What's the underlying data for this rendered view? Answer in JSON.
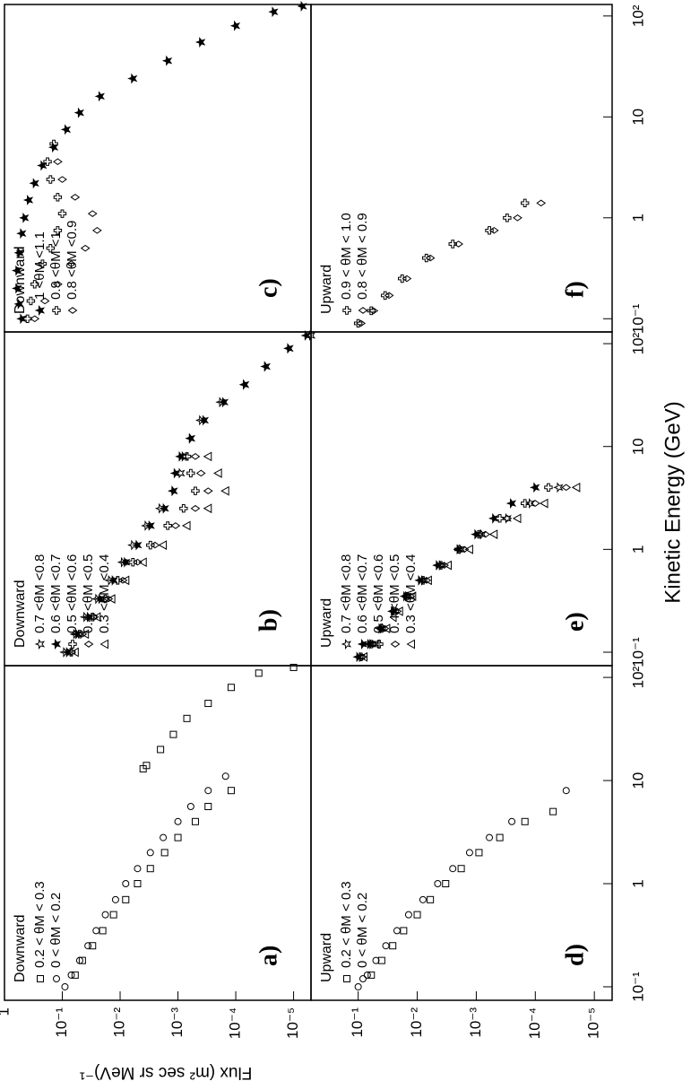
{
  "ylabel": "Flux (m² sec sr MeV)⁻¹",
  "xlabel": "Kinetic Energy (GeV)",
  "chart_data": [
    {
      "type": "scatter",
      "panel_label": "a)",
      "legend_title": "Downward",
      "legend": "upper left",
      "log_x": true,
      "log_y": true,
      "xlim": [
        0.074,
        130
      ],
      "ylim": [
        5e-06,
        1
      ],
      "yticks": [
        1,
        {
          "value": 0.1,
          "label": "10⁻¹"
        },
        {
          "value": 0.01,
          "label": "10⁻²"
        },
        {
          "value": 0.001,
          "label": "10⁻³"
        },
        {
          "value": 0.0001,
          "label": "10⁻⁴"
        },
        {
          "value": 1e-05,
          "label": "10⁻⁵"
        }
      ],
      "series": [
        {
          "name": "0.2 < θM < 0.3",
          "marker": "square",
          "color": "#000000",
          "x": [
            0.13,
            0.18,
            0.25,
            0.35,
            0.5,
            0.7,
            1,
            1.4,
            2,
            2.8,
            4,
            5.6,
            8,
            13,
            14,
            20,
            28,
            40,
            56,
            80,
            110,
            125
          ],
          "values": [
            0.06,
            0.045,
            0.03,
            0.02,
            0.013,
            0.008,
            0.005,
            0.003,
            0.0017,
            0.001,
            0.0005,
            0.0003,
            0.00012,
            0.004,
            0.0035,
            0.002,
            0.0012,
            0.0007,
            0.0003,
            0.00012,
            4e-05,
            1e-05
          ]
        },
        {
          "name": "0 < θM < 0.2",
          "marker": "circle",
          "color": "#000000",
          "x": [
            0.1,
            0.13,
            0.18,
            0.25,
            0.35,
            0.5,
            0.7,
            1,
            1.4,
            2,
            2.8,
            4,
            5.6,
            8,
            11
          ],
          "values": [
            0.09,
            0.07,
            0.05,
            0.036,
            0.026,
            0.018,
            0.012,
            0.008,
            0.005,
            0.003,
            0.0018,
            0.001,
            0.0006,
            0.0003,
            0.00015
          ]
        }
      ]
    },
    {
      "type": "scatter",
      "panel_label": "b)",
      "legend_title": "Downward",
      "legend": "upper left",
      "log_x": true,
      "log_y": true,
      "xlim": [
        0.074,
        130
      ],
      "ylim": [
        5e-06,
        1
      ],
      "series": [
        {
          "name": "0.7 <θM <0.8",
          "marker": "star-open",
          "color": "#000000",
          "x": [
            0.1,
            0.15,
            0.22,
            0.33,
            0.5,
            0.75,
            1.1,
            1.7,
            2.5,
            3.7,
            5.5,
            8,
            12,
            18,
            27,
            40,
            60,
            90,
            120
          ],
          "values": [
            0.09,
            0.06,
            0.04,
            0.025,
            0.015,
            0.009,
            0.006,
            0.0035,
            0.002,
            0.0012,
            0.0009,
            0.0008,
            0.0006,
            0.0004,
            0.00018,
            7e-05,
            3e-05,
            1.2e-05,
            5e-06
          ]
        },
        {
          "name": "0.6 <θM <0.7",
          "marker": "star",
          "color": "#000000",
          "x": [
            0.1,
            0.15,
            0.22,
            0.33,
            0.5,
            0.75,
            1.1,
            1.7,
            2.5,
            3.7,
            5.5,
            8,
            12,
            18,
            27,
            40,
            60,
            90,
            120
          ],
          "values": [
            0.08,
            0.055,
            0.035,
            0.022,
            0.013,
            0.008,
            0.005,
            0.003,
            0.0017,
            0.0012,
            0.0011,
            0.0009,
            0.0006,
            0.00035,
            0.00016,
            7e-05,
            3e-05,
            1.2e-05,
            6e-06
          ]
        },
        {
          "name": "0.5 <θM <0.6",
          "marker": "cross",
          "color": "#000000",
          "x": [
            0.1,
            0.15,
            0.22,
            0.33,
            0.5,
            0.75,
            1.1,
            1.7,
            2.5,
            3.7,
            5.5,
            8
          ],
          "values": [
            0.07,
            0.05,
            0.03,
            0.018,
            0.011,
            0.006,
            0.003,
            0.0015,
            0.0008,
            0.0005,
            0.0006,
            0.0007
          ]
        },
        {
          "name": "0.4 <θM <0.5",
          "marker": "diamond",
          "color": "#000000",
          "x": [
            0.1,
            0.15,
            0.22,
            0.33,
            0.5,
            0.75,
            1.1,
            1.7,
            2.5,
            3.7,
            5.5,
            8
          ],
          "values": [
            0.07,
            0.045,
            0.028,
            0.016,
            0.009,
            0.005,
            0.0025,
            0.0011,
            0.0005,
            0.0003,
            0.0004,
            0.0005
          ]
        },
        {
          "name": "0.3 <θM <0.4",
          "marker": "triangle",
          "color": "#000000",
          "x": [
            0.1,
            0.15,
            0.22,
            0.33,
            0.5,
            0.75,
            1.1,
            1.7,
            2.5,
            3.7,
            5.5,
            8
          ],
          "values": [
            0.06,
            0.04,
            0.025,
            0.014,
            0.008,
            0.004,
            0.0018,
            0.0007,
            0.0003,
            0.00015,
            0.0002,
            0.0003
          ]
        }
      ]
    },
    {
      "type": "scatter",
      "panel_label": "c)",
      "legend_title": "Downward",
      "legend": "upper left",
      "log_x": true,
      "log_y": true,
      "xlim": [
        0.074,
        130
      ],
      "ylim": [
        5e-06,
        1
      ],
      "series": [
        {
          "name": "1 <θM <1.1",
          "marker": "star",
          "color": "#000000",
          "x": [
            0.1,
            0.14,
            0.2,
            0.3,
            0.45,
            0.7,
            1,
            1.5,
            2.2,
            3.3,
            5,
            7.5,
            11,
            16,
            24,
            36,
            55,
            80,
            110,
            125
          ],
          "values": [
            0.5,
            0.55,
            0.6,
            0.6,
            0.55,
            0.5,
            0.45,
            0.38,
            0.3,
            0.22,
            0.14,
            0.085,
            0.05,
            0.022,
            0.006,
            0.0015,
            0.0004,
            0.0001,
            2.2e-05,
            7e-06
          ]
        },
        {
          "name": "0.9 <θM <1",
          "marker": "cross",
          "color": "#000000",
          "x": [
            0.1,
            0.15,
            0.22,
            0.35,
            0.5,
            0.75,
            1.1,
            1.6,
            2.4,
            3.6,
            5.4
          ],
          "values": [
            0.4,
            0.35,
            0.3,
            0.22,
            0.16,
            0.12,
            0.1,
            0.12,
            0.16,
            0.18,
            0.14
          ]
        },
        {
          "name": "0.8 <θM <0.9",
          "marker": "diamond",
          "color": "#000000",
          "x": [
            0.1,
            0.15,
            0.22,
            0.35,
            0.5,
            0.75,
            1.1,
            1.6,
            2.4,
            3.6
          ],
          "values": [
            0.3,
            0.2,
            0.12,
            0.07,
            0.04,
            0.025,
            0.03,
            0.06,
            0.1,
            0.12
          ]
        }
      ]
    },
    {
      "type": "scatter",
      "panel_label": "d)",
      "legend_title": "Upward",
      "legend": "upper left",
      "log_x": true,
      "log_y": true,
      "xlim": [
        0.074,
        130
      ],
      "ylim": [
        5e-06,
        0.63
      ],
      "xticks": [
        {
          "value": 0.1,
          "label": "10⁻¹"
        },
        1,
        10,
        {
          "value": 100,
          "label": "10²"
        }
      ],
      "yticks": [
        {
          "value": 0.1,
          "label": "10⁻¹"
        },
        {
          "value": 0.01,
          "label": "10⁻²"
        },
        {
          "value": 0.001,
          "label": "10⁻³"
        },
        {
          "value": 0.0001,
          "label": "10⁻⁴"
        },
        {
          "value": 1e-05,
          "label": "10⁻⁵"
        }
      ],
      "series": [
        {
          "name": "0.2 < θM < 0.3",
          "marker": "square",
          "color": "#000000",
          "x": [
            0.13,
            0.18,
            0.25,
            0.35,
            0.5,
            0.7,
            1,
            1.4,
            2,
            2.8,
            4,
            5
          ],
          "values": [
            0.06,
            0.04,
            0.026,
            0.017,
            0.01,
            0.006,
            0.0033,
            0.0018,
            0.0009,
            0.0004,
            0.00015,
            5e-05
          ]
        },
        {
          "name": "0 < θM < 0.2",
          "marker": "circle",
          "color": "#000000",
          "x": [
            0.1,
            0.13,
            0.18,
            0.25,
            0.35,
            0.5,
            0.7,
            1,
            1.4,
            2,
            2.8,
            4,
            8
          ],
          "values": [
            0.1,
            0.07,
            0.05,
            0.034,
            0.022,
            0.014,
            0.008,
            0.0045,
            0.0025,
            0.0013,
            0.0006,
            0.00025,
            3e-05
          ]
        }
      ]
    },
    {
      "type": "scatter",
      "panel_label": "e)",
      "legend_title": "Upward",
      "legend": "upper left",
      "log_x": true,
      "log_y": true,
      "xlim": [
        0.074,
        130
      ],
      "ylim": [
        5e-06,
        0.63
      ],
      "xticks": [
        {
          "value": 0.1,
          "label": "10⁻¹"
        },
        1,
        10,
        {
          "value": 100,
          "label": "10²"
        }
      ],
      "series": [
        {
          "name": "0.7 <θM <0.8",
          "marker": "star-open",
          "color": "#000000",
          "x": [
            0.09,
            0.12,
            0.17,
            0.25,
            0.35,
            0.5,
            0.7,
            1,
            1.4,
            2,
            2.8,
            4
          ],
          "values": [
            0.09,
            0.06,
            0.04,
            0.025,
            0.015,
            0.008,
            0.004,
            0.0018,
            0.0008,
            0.0003,
            0.00012,
            4e-05
          ]
        },
        {
          "name": "0.6 <θM <0.7",
          "marker": "star",
          "color": "#000000",
          "x": [
            0.09,
            0.12,
            0.17,
            0.25,
            0.35,
            0.5,
            0.7,
            1,
            1.4,
            2,
            2.8,
            4
          ],
          "values": [
            0.1,
            0.065,
            0.042,
            0.026,
            0.016,
            0.009,
            0.0045,
            0.002,
            0.001,
            0.0005,
            0.00025,
            0.0001
          ]
        },
        {
          "name": "0.5 <θM <0.6",
          "marker": "cross",
          "color": "#000000",
          "x": [
            0.09,
            0.12,
            0.17,
            0.25,
            0.35,
            0.5,
            0.7,
            1,
            1.4,
            2,
            2.8,
            4
          ],
          "values": [
            0.09,
            0.06,
            0.04,
            0.024,
            0.015,
            0.008,
            0.004,
            0.002,
            0.0009,
            0.0004,
            0.00015,
            6e-05
          ]
        },
        {
          "name": "0.4 <θM <0.5",
          "marker": "diamond",
          "color": "#000000",
          "x": [
            0.09,
            0.12,
            0.17,
            0.25,
            0.35,
            0.5,
            0.7,
            1,
            1.4,
            2,
            2.8,
            4
          ],
          "values": [
            0.085,
            0.055,
            0.036,
            0.022,
            0.013,
            0.007,
            0.0035,
            0.0016,
            0.0007,
            0.0003,
            0.0001,
            3e-05
          ]
        },
        {
          "name": "0.3 <θM <0.4",
          "marker": "triangle",
          "color": "#000000",
          "x": [
            0.09,
            0.12,
            0.17,
            0.25,
            0.35,
            0.5,
            0.7,
            1,
            1.4,
            2,
            2.8,
            4
          ],
          "values": [
            0.08,
            0.05,
            0.033,
            0.02,
            0.012,
            0.0065,
            0.003,
            0.0013,
            0.0005,
            0.0002,
            7e-05,
            2e-05
          ]
        }
      ]
    },
    {
      "type": "scatter",
      "panel_label": "f)",
      "legend_title": "Upward",
      "legend": "upper left",
      "log_x": true,
      "log_y": true,
      "xlim": [
        0.074,
        130
      ],
      "ylim": [
        5e-06,
        0.63
      ],
      "xticks": [
        {
          "value": 0.1,
          "label": "10⁻¹"
        },
        1,
        10,
        {
          "value": 100,
          "label": "10²"
        }
      ],
      "series": [
        {
          "name": "0.9 < θM < 1.0",
          "marker": "cross",
          "color": "#000000",
          "x": [
            0.09,
            0.12,
            0.17,
            0.25,
            0.4,
            0.55,
            0.75,
            1.0,
            1.4
          ],
          "values": [
            0.1,
            0.06,
            0.035,
            0.018,
            0.007,
            0.0025,
            0.0006,
            0.0003,
            0.00015
          ]
        },
        {
          "name": "0.8 < θM < 0.9",
          "marker": "diamond",
          "color": "#000000",
          "x": [
            0.09,
            0.12,
            0.17,
            0.25,
            0.4,
            0.55,
            0.75,
            1.0,
            1.4
          ],
          "values": [
            0.09,
            0.055,
            0.03,
            0.015,
            0.006,
            0.002,
            0.0005,
            0.0002,
            8e-05
          ]
        }
      ]
    }
  ]
}
